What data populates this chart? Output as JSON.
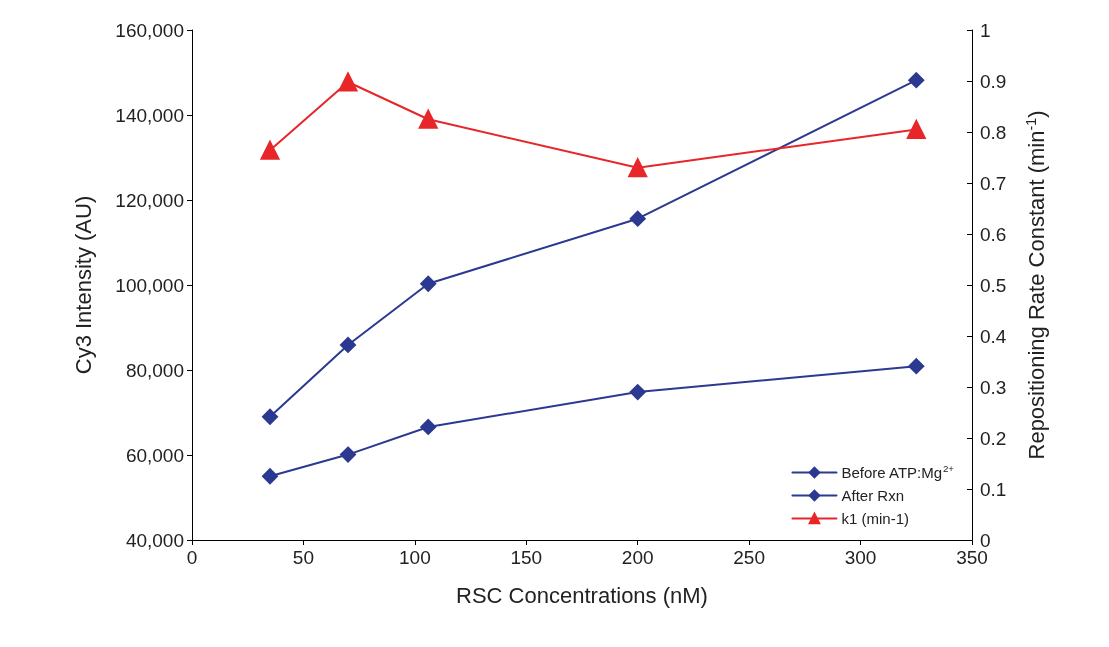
{
  "chart_data": {
    "type": "line",
    "xlabel": "RSC Concentrations (nM)",
    "ylabel": "Cy3 Intensity (AU)",
    "y2label": "Repositioning Rate Constant (min$^{-1}$)",
    "x": [
      35,
      70,
      106,
      200,
      325
    ],
    "series": [
      {
        "name": "Before ATP:Mg$^{2+}$",
        "color": "#2b3990",
        "marker": "diamond",
        "values": [
          55000,
          60100,
          66600,
          74800,
          80900
        ]
      },
      {
        "name": "After Rxn",
        "color": "#2b3990",
        "marker": "diamond",
        "values": [
          69000,
          85900,
          100300,
          115600,
          148200
        ]
      },
      {
        "name": "k1 (min-1)",
        "color": "#e8262a",
        "marker": "triangle",
        "axis": "y2",
        "values": [
          0.764,
          0.898,
          0.825,
          0.73,
          0.805
        ]
      }
    ],
    "xlim": [
      0,
      350
    ],
    "xticks": [
      0,
      50,
      100,
      150,
      200,
      250,
      300,
      350
    ],
    "ylim": [
      40000,
      160000
    ],
    "yticks": [
      {
        "value": 40000,
        "label": "40,000"
      },
      {
        "value": 60000,
        "label": "60,000"
      },
      {
        "value": 80000,
        "label": "80,000"
      },
      {
        "value": 100000,
        "label": "100,000"
      },
      {
        "value": 120000,
        "label": "120,000"
      },
      {
        "value": 140000,
        "label": "140,000"
      },
      {
        "value": 160000,
        "label": "160,000"
      }
    ],
    "y2lim": [
      0,
      1
    ],
    "y2ticks": [
      0,
      0.1,
      0.2,
      0.3,
      0.4,
      0.5,
      0.6,
      0.7,
      0.8,
      0.9,
      1
    ],
    "legend": "bottom right",
    "grid": false,
    "line_style": "solid"
  }
}
